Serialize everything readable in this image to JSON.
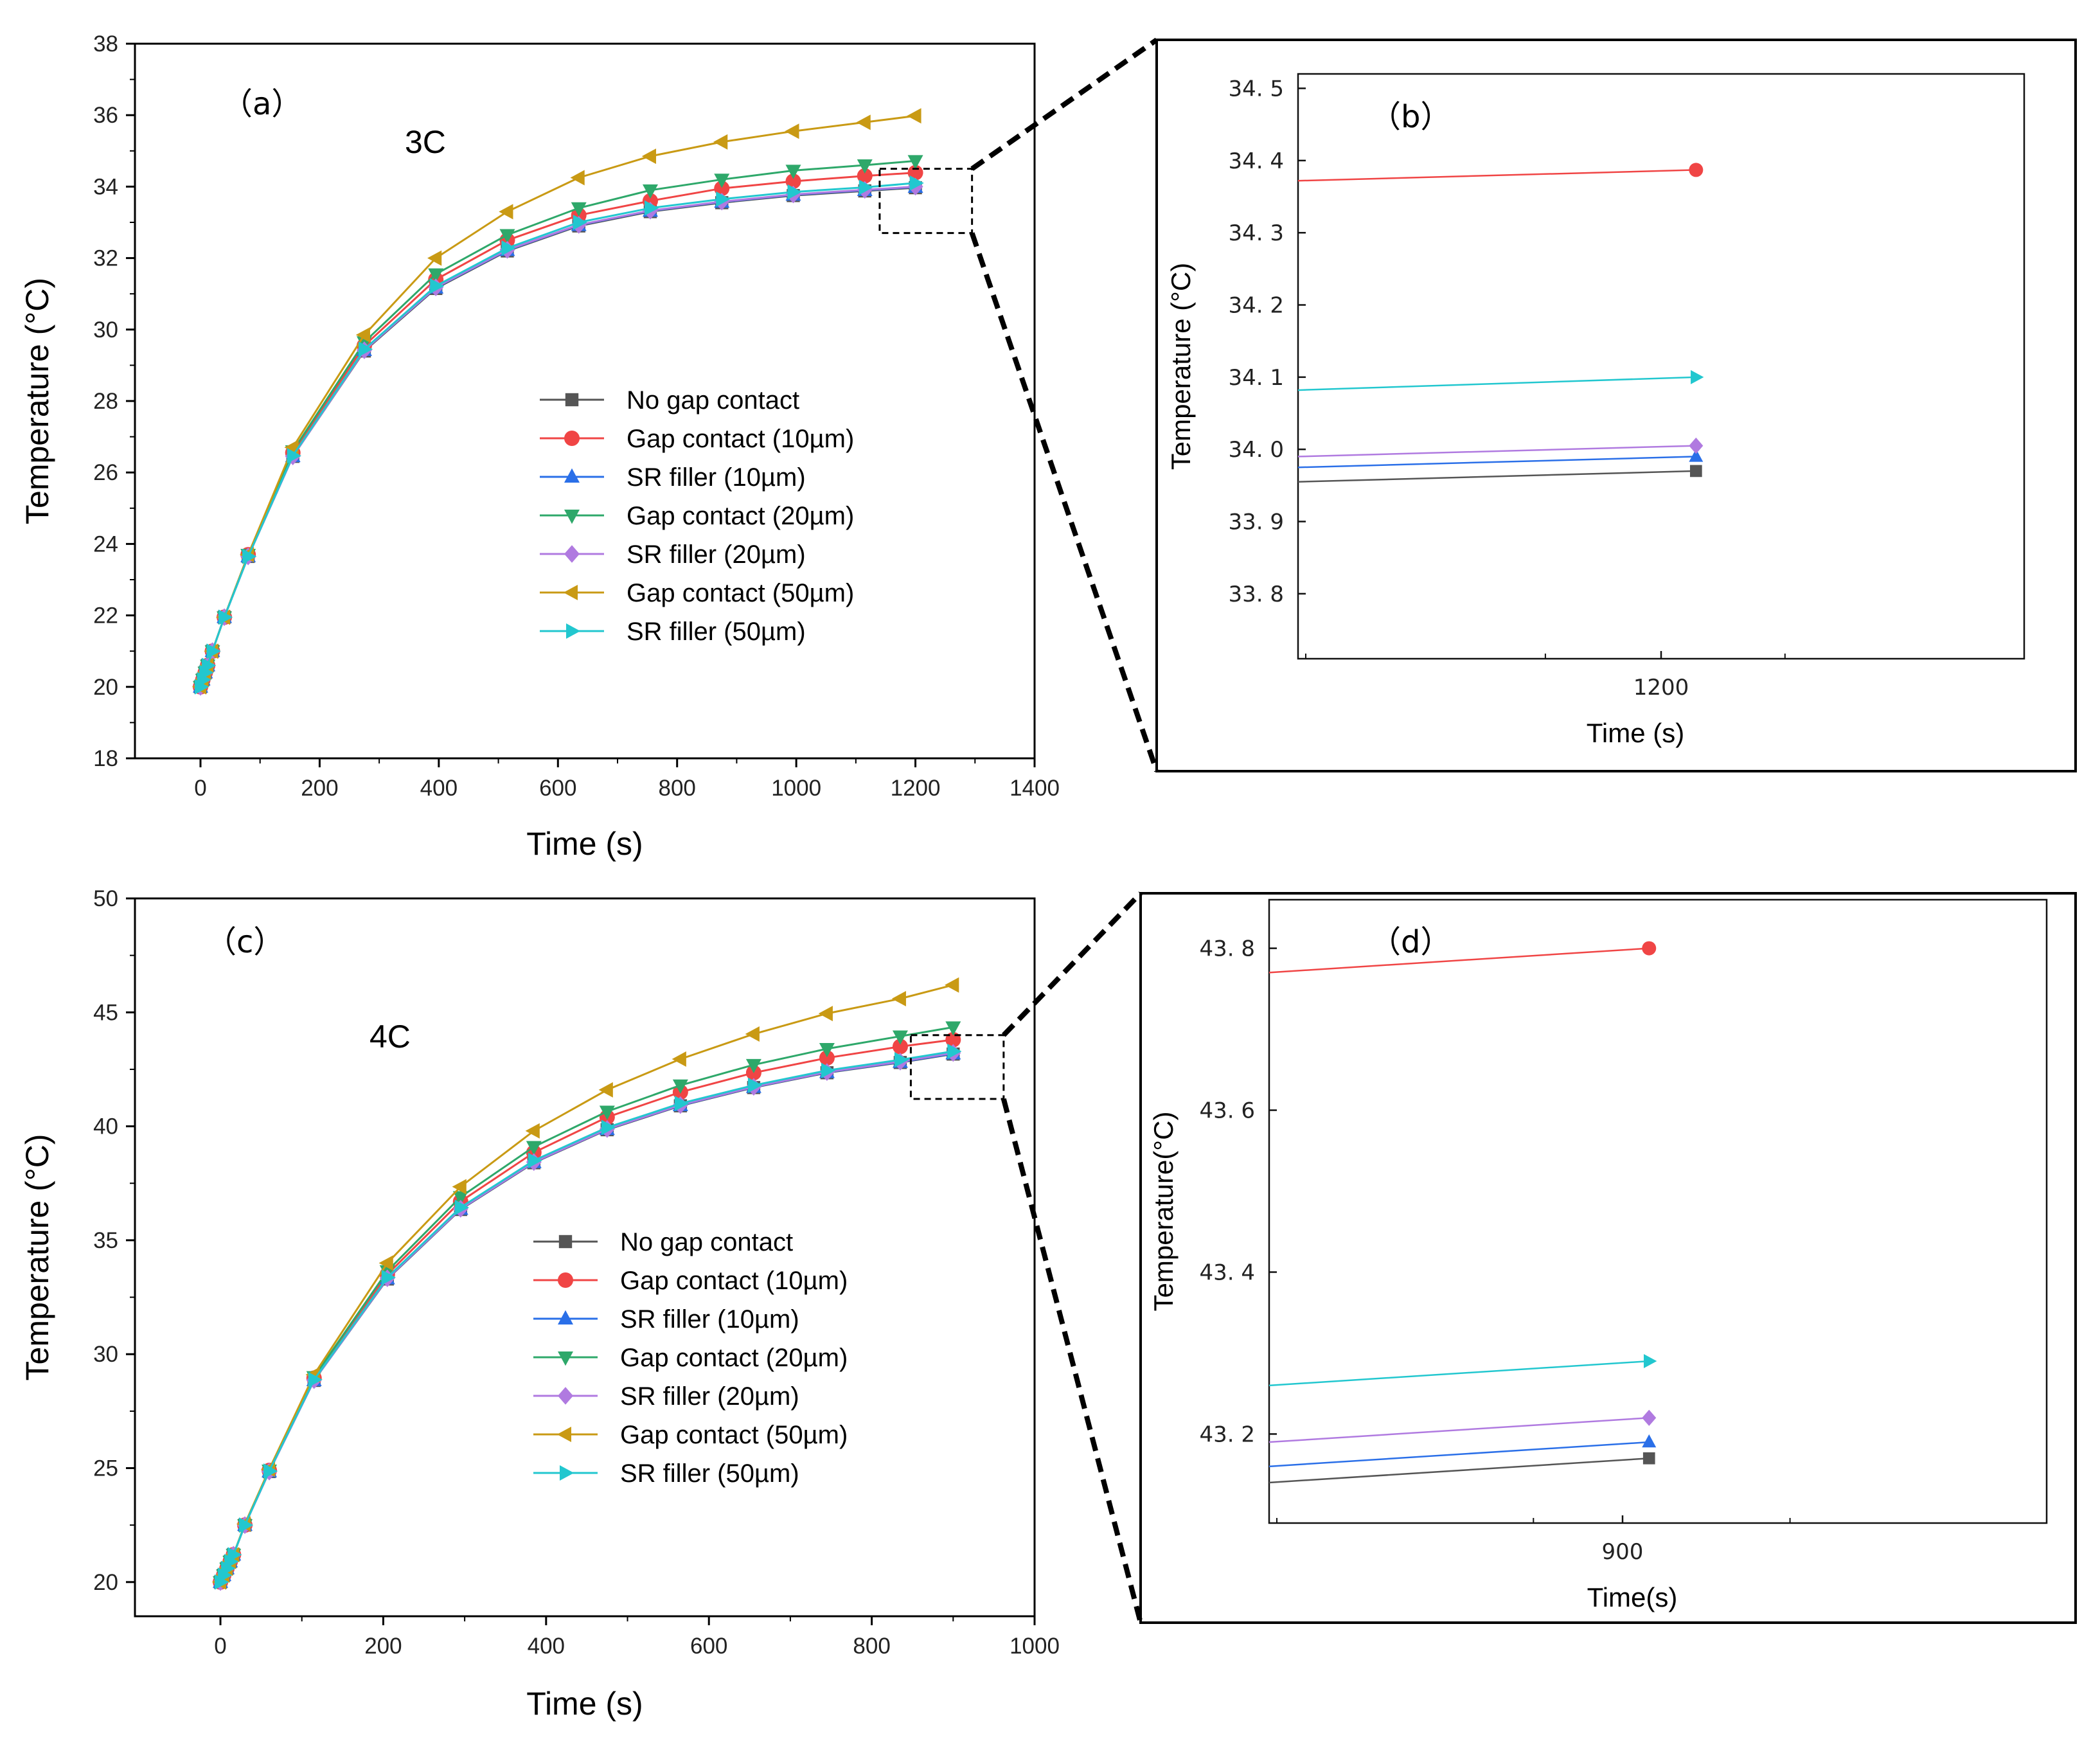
{
  "series_styles": [
    {
      "color": "#555555",
      "marker": "square"
    },
    {
      "color": "#f04545",
      "marker": "circle"
    },
    {
      "color": "#2a6fe8",
      "marker": "triangle-up"
    },
    {
      "color": "#2ea86a",
      "marker": "triangle-down"
    },
    {
      "color": "#b07ae0",
      "marker": "diamond"
    },
    {
      "color": "#c99a14",
      "marker": "triangle-left"
    },
    {
      "color": "#22c7cf",
      "marker": "triangle-right"
    }
  ],
  "zoom_box_color": "#000000",
  "chart_data": [
    {
      "id": "a",
      "type": "line",
      "panel_label": "（a）",
      "annotation": "3C",
      "xlabel": "Time (s)",
      "ylabel": "Temperature (°C)",
      "xlim": [
        -110,
        1400
      ],
      "ylim": [
        18,
        38
      ],
      "xticks": [
        "0",
        "200",
        "400",
        "600",
        "800",
        "1000",
        "1200",
        "1400"
      ],
      "yticks": [
        "18",
        "20",
        "22",
        "24",
        "26",
        "28",
        "30",
        "32",
        "34",
        "36",
        "38"
      ],
      "legend_position": "center-right",
      "x": [
        0,
        4,
        8,
        12,
        20,
        40,
        80,
        155,
        275,
        395,
        515,
        635,
        755,
        875,
        995,
        1115,
        1200
      ],
      "series": [
        {
          "name": "No gap contact",
          "values": [
            20.0,
            20.2,
            20.4,
            20.6,
            21.0,
            21.95,
            23.65,
            26.45,
            29.4,
            31.15,
            32.2,
            32.9,
            33.3,
            33.55,
            33.75,
            33.88,
            33.97
          ]
        },
        {
          "name": "Gap contact (10µm)",
          "values": [
            20.0,
            20.2,
            20.4,
            20.6,
            21.0,
            21.95,
            23.7,
            26.55,
            29.55,
            31.4,
            32.5,
            33.2,
            33.6,
            33.95,
            34.15,
            34.3,
            34.39
          ]
        },
        {
          "name": "SR filler (10µm)",
          "values": [
            20.0,
            20.2,
            20.4,
            20.6,
            21.0,
            21.95,
            23.65,
            26.45,
            29.42,
            31.17,
            32.22,
            32.92,
            33.32,
            33.57,
            33.77,
            33.9,
            33.99
          ]
        },
        {
          "name": "Gap contact (20µm)",
          "values": [
            20.0,
            20.2,
            20.4,
            20.6,
            21.0,
            21.95,
            23.7,
            26.6,
            29.65,
            31.55,
            32.65,
            33.4,
            33.9,
            34.2,
            34.45,
            34.6,
            34.72
          ]
        },
        {
          "name": "SR filler (20µm)",
          "values": [
            20.0,
            20.2,
            20.4,
            20.6,
            21.0,
            21.95,
            23.65,
            26.45,
            29.42,
            31.18,
            32.23,
            32.93,
            33.33,
            33.58,
            33.78,
            33.91,
            34.0
          ]
        },
        {
          "name": "Gap contact (50µm)",
          "values": [
            20.0,
            20.2,
            20.4,
            20.6,
            21.0,
            21.95,
            23.7,
            26.7,
            29.85,
            32.0,
            33.3,
            34.25,
            34.85,
            35.25,
            35.55,
            35.8,
            35.98
          ]
        },
        {
          "name": "SR filler (50µm)",
          "values": [
            20.0,
            20.2,
            20.4,
            20.6,
            21.0,
            21.95,
            23.65,
            26.47,
            29.45,
            31.22,
            32.28,
            33.0,
            33.4,
            33.65,
            33.85,
            33.98,
            34.1
          ]
        }
      ],
      "zoom_region": {
        "x": [
          1140,
          1295
        ],
        "y": [
          32.7,
          34.5
        ]
      }
    },
    {
      "id": "b",
      "type": "line",
      "panel_label": "（b）",
      "xlabel": "Time (s)",
      "ylabel": "Temperature (°C)",
      "xlim": [
        1148,
        1252
      ],
      "ylim": [
        33.71,
        34.52
      ],
      "xticks": [
        "1200"
      ],
      "xtick_values": [
        1200
      ],
      "yticks": [
        "33. 8",
        "33. 9",
        "34. 0",
        "34. 1",
        "34. 2",
        "34. 3",
        "34. 4",
        "34. 5"
      ],
      "ytick_values": [
        33.8,
        33.9,
        34.0,
        34.1,
        34.2,
        34.3,
        34.4,
        34.5
      ],
      "series": [
        {
          "name": "No gap contact",
          "x": [
            1148,
            1205
          ],
          "values": [
            33.955,
            33.97
          ]
        },
        {
          "name": "Gap contact (10µm)",
          "x": [
            1148,
            1205
          ],
          "values": [
            34.372,
            34.387
          ]
        },
        {
          "name": "SR filler (10µm)",
          "x": [
            1148,
            1205
          ],
          "values": [
            33.975,
            33.99
          ]
        },
        {
          "name": "SR filler (20µm)",
          "x": [
            1148,
            1205
          ],
          "values": [
            33.99,
            34.005
          ]
        },
        {
          "name": "SR filler (50µm)",
          "x": [
            1148,
            1205
          ],
          "values": [
            34.082,
            34.1
          ]
        }
      ]
    },
    {
      "id": "c",
      "type": "line",
      "panel_label": "（c）",
      "annotation": "4C",
      "xlabel": "Time (s)",
      "ylabel": "Temperature (°C)",
      "xlim": [
        -105,
        1000
      ],
      "ylim": [
        18.5,
        50
      ],
      "xticks": [
        "0",
        "200",
        "400",
        "600",
        "800",
        "1000"
      ],
      "yticks": [
        "20",
        "25",
        "30",
        "35",
        "40",
        "45",
        "50"
      ],
      "legend_position": "center-right",
      "x": [
        0,
        4,
        8,
        12,
        16,
        30,
        60,
        115,
        205,
        295,
        385,
        475,
        565,
        655,
        745,
        835,
        900
      ],
      "series": [
        {
          "name": "No gap contact",
          "values": [
            20.0,
            20.3,
            20.6,
            20.9,
            21.2,
            22.5,
            24.85,
            28.85,
            33.3,
            36.35,
            38.4,
            39.85,
            40.9,
            41.7,
            42.35,
            42.8,
            43.17
          ]
        },
        {
          "name": "Gap contact (10µm)",
          "values": [
            20.0,
            20.3,
            20.6,
            20.9,
            21.2,
            22.5,
            24.9,
            28.95,
            33.5,
            36.7,
            38.85,
            40.4,
            41.5,
            42.35,
            43.0,
            43.5,
            43.8
          ]
        },
        {
          "name": "SR filler (10µm)",
          "values": [
            20.0,
            20.3,
            20.6,
            20.9,
            21.2,
            22.5,
            24.85,
            28.85,
            33.32,
            36.37,
            38.42,
            39.87,
            40.92,
            41.72,
            42.37,
            42.82,
            43.19
          ]
        },
        {
          "name": "Gap contact (20µm)",
          "values": [
            20.0,
            20.3,
            20.6,
            20.9,
            21.2,
            22.5,
            24.9,
            29.0,
            33.65,
            36.9,
            39.1,
            40.65,
            41.8,
            42.7,
            43.4,
            43.95,
            44.35
          ]
        },
        {
          "name": "SR filler (20µm)",
          "values": [
            20.0,
            20.3,
            20.6,
            20.9,
            21.2,
            22.5,
            24.85,
            28.86,
            33.33,
            36.38,
            38.43,
            39.88,
            40.93,
            41.73,
            42.38,
            42.84,
            43.22
          ]
        },
        {
          "name": "Gap contact (50µm)",
          "values": [
            20.0,
            20.3,
            20.6,
            20.9,
            21.2,
            22.55,
            24.95,
            29.1,
            34.0,
            37.35,
            39.8,
            41.6,
            42.95,
            44.05,
            44.95,
            45.6,
            46.2
          ]
        },
        {
          "name": "SR filler (50µm)",
          "values": [
            20.0,
            20.3,
            20.6,
            20.9,
            21.2,
            22.5,
            24.87,
            28.88,
            33.37,
            36.44,
            38.5,
            39.95,
            41.0,
            41.8,
            42.45,
            42.92,
            43.29
          ]
        }
      ],
      "zoom_region": {
        "x": [
          848,
          962
        ],
        "y": [
          41.2,
          44.0
        ]
      }
    },
    {
      "id": "d",
      "type": "line",
      "panel_label": "（d）",
      "xlabel": "Time(s)",
      "ylabel": "Temperature(°C)",
      "xlim": [
        860,
        948
      ],
      "ylim": [
        43.09,
        43.86
      ],
      "xticks": [
        "900"
      ],
      "xtick_values": [
        900
      ],
      "yticks": [
        "43. 2",
        "43. 4",
        "43. 6",
        "43. 8"
      ],
      "ytick_values": [
        43.2,
        43.4,
        43.6,
        43.8
      ],
      "series": [
        {
          "name": "No gap contact",
          "x": [
            860,
            903
          ],
          "values": [
            43.14,
            43.17
          ]
        },
        {
          "name": "Gap contact (10µm)",
          "x": [
            860,
            903
          ],
          "values": [
            43.77,
            43.8
          ]
        },
        {
          "name": "SR filler (10µm)",
          "x": [
            860,
            903
          ],
          "values": [
            43.16,
            43.19
          ]
        },
        {
          "name": "SR filler (20µm)",
          "x": [
            860,
            903
          ],
          "values": [
            43.19,
            43.22
          ]
        },
        {
          "name": "SR filler (50µm)",
          "x": [
            860,
            903
          ],
          "values": [
            43.26,
            43.29
          ]
        }
      ]
    }
  ]
}
